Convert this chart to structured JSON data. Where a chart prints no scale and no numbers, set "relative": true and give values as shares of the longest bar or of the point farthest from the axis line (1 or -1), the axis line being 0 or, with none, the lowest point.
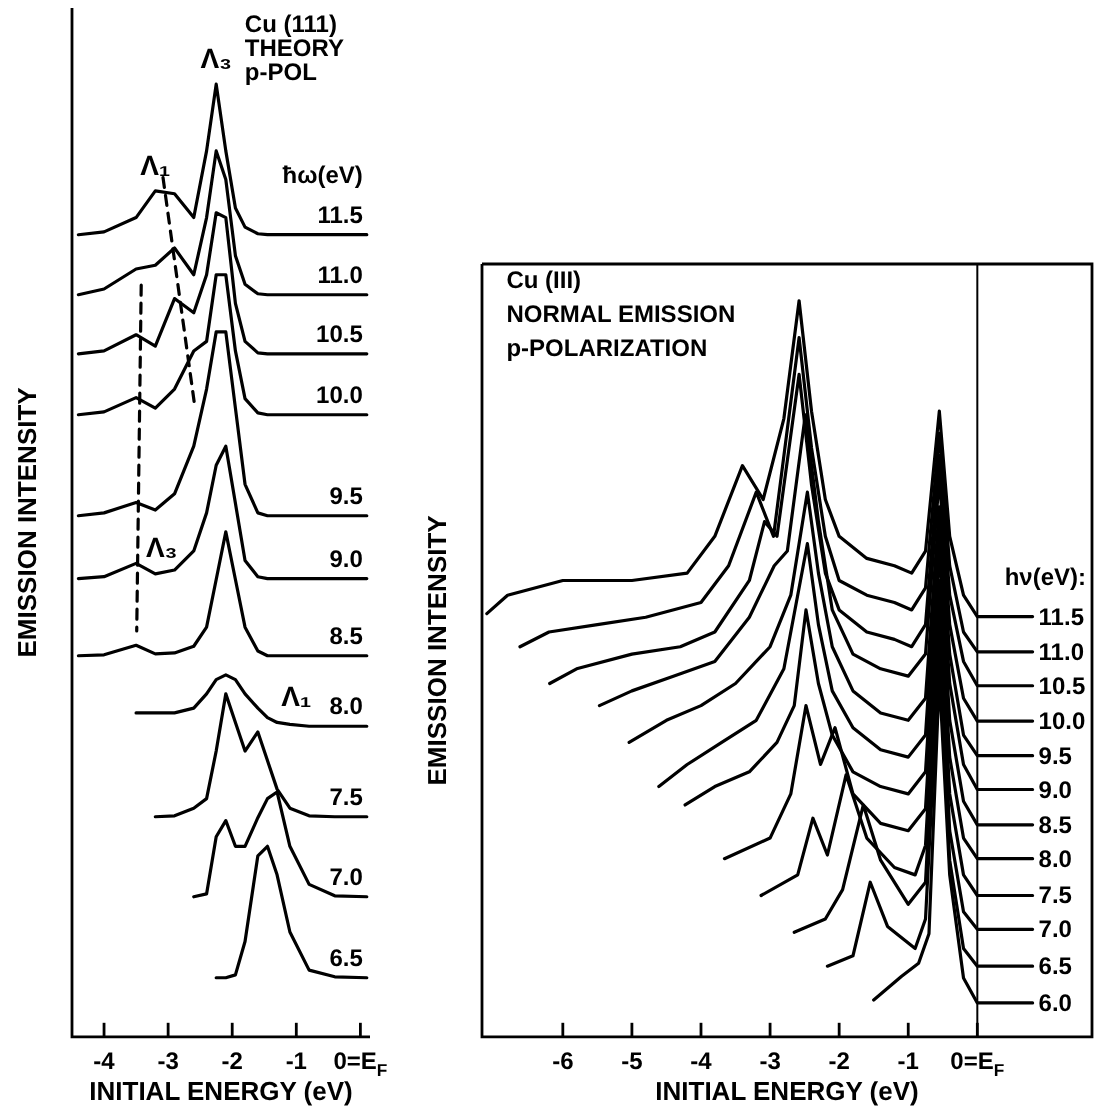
{
  "chart_data": [
    {
      "type": "line",
      "relative": true,
      "xlabel": "INITIAL ENERGY (eV)",
      "ylabel": "EMISSION INTENSITY",
      "legend_title": "ħω(eV)",
      "marker": "none",
      "xlim": [
        -4.5,
        0.15
      ],
      "xticks": [
        -4,
        -3,
        -2,
        -1,
        {
          "value": 0,
          "label": "0=E$_{F}$"
        }
      ],
      "x": [
        -4.4,
        -4.0,
        -3.5,
        -3.2,
        -2.9,
        -2.6,
        -2.4,
        -2.25,
        -2.1,
        -1.95,
        -1.8,
        -1.6,
        -1.45,
        -1.3,
        -1.1,
        -0.8,
        -0.4,
        0.1
      ],
      "series": [
        {
          "name": "11.5",
          "color": "#000000",
          "values": [
            0.842,
            0.845,
            0.86,
            0.888,
            0.885,
            0.86,
            0.93,
            1.0,
            0.93,
            0.87,
            0.85,
            0.843,
            0.842,
            0.842,
            0.842,
            0.842,
            0.842,
            0.842
          ]
        },
        {
          "name": "11.0",
          "color": "#000000",
          "values": [
            0.779,
            0.785,
            0.806,
            0.81,
            0.828,
            0.8,
            0.86,
            0.93,
            0.9,
            0.82,
            0.79,
            0.78,
            0.779,
            0.779,
            0.779,
            0.779,
            0.779,
            0.779
          ]
        },
        {
          "name": "10.5",
          "color": "#000000",
          "values": [
            0.717,
            0.72,
            0.737,
            0.725,
            0.775,
            0.76,
            0.8,
            0.865,
            0.86,
            0.77,
            0.73,
            0.718,
            0.717,
            0.717,
            0.717,
            0.717,
            0.717,
            0.717
          ]
        },
        {
          "name": "10.0",
          "color": "#000000",
          "values": [
            0.653,
            0.656,
            0.671,
            0.66,
            0.68,
            0.72,
            0.73,
            0.8,
            0.8,
            0.72,
            0.67,
            0.655,
            0.653,
            0.653,
            0.653,
            0.653,
            0.653,
            0.653
          ]
        },
        {
          "name": "9.5",
          "color": "#000000",
          "values": [
            0.547,
            0.55,
            0.561,
            0.553,
            0.57,
            0.62,
            0.68,
            0.74,
            0.74,
            0.66,
            0.58,
            0.55,
            0.547,
            0.547,
            0.547,
            0.547,
            0.547,
            0.547
          ]
        },
        {
          "name": "9.0",
          "color": "#000000",
          "values": [
            0.481,
            0.483,
            0.497,
            0.486,
            0.49,
            0.51,
            0.55,
            0.6,
            0.62,
            0.56,
            0.5,
            0.483,
            0.481,
            0.481,
            0.481,
            0.481,
            0.481,
            0.481
          ]
        },
        {
          "name": "8.5",
          "color": "#000000",
          "values": [
            0.4,
            0.401,
            0.411,
            0.402,
            0.403,
            0.41,
            0.43,
            0.48,
            0.53,
            0.48,
            0.43,
            0.405,
            0.4,
            0.4,
            0.4,
            0.4,
            0.4,
            0.4
          ]
        },
        {
          "name": "8.0",
          "color": "#000000",
          "values": [
            null,
            null,
            0.34,
            0.34,
            0.34,
            0.345,
            0.36,
            0.375,
            0.38,
            0.375,
            0.36,
            0.345,
            0.335,
            0.33,
            0.328,
            0.326,
            0.326,
            0.326
          ]
        },
        {
          "name": "7.5",
          "color": "#000000",
          "values": [
            null,
            null,
            null,
            0.231,
            0.232,
            0.24,
            0.25,
            0.3,
            0.36,
            0.33,
            0.3,
            0.32,
            0.29,
            0.26,
            0.24,
            0.232,
            0.231,
            0.231
          ]
        },
        {
          "name": "7.0",
          "color": "#000000",
          "values": [
            null,
            null,
            null,
            null,
            null,
            0.147,
            0.15,
            0.21,
            0.227,
            0.2,
            0.2,
            0.23,
            0.25,
            0.257,
            0.2,
            0.16,
            0.148,
            0.147
          ]
        },
        {
          "name": "6.5",
          "color": "#000000",
          "values": [
            null,
            null,
            null,
            null,
            null,
            null,
            null,
            0.062,
            0.062,
            0.065,
            0.1,
            0.19,
            0.2,
            0.17,
            0.11,
            0.07,
            0.063,
            0.062
          ]
        },
        {
          "type": "line",
          "line_style": "dashed",
          "color": "#000000",
          "x": [
            -3.08,
            -2.58
          ],
          "values": [
            0.902,
            0.66
          ]
        },
        {
          "type": "line",
          "line_style": "dashed",
          "color": "#000000",
          "x": [
            -3.42,
            -3.49
          ],
          "values": [
            0.789,
            0.426
          ]
        }
      ],
      "annotations": [
        {
          "text": "Λ₃",
          "x": -2.25,
          "y": 1.0
        },
        {
          "text": "Λ₁",
          "x": -3.2,
          "y": 0.888
        },
        {
          "text": "Λ₃",
          "x": -3.1,
          "y": 0.487
        },
        {
          "text": "Λ₁",
          "x": -1.0,
          "y": 0.33
        },
        "Cu (111)",
        "THEORY",
        "p-POL"
      ]
    },
    {
      "type": "line",
      "relative": true,
      "xlabel": "INITIAL ENERGY (eV)",
      "ylabel": "EMISSION INTENSITY",
      "legend_title": "hν(eV):",
      "marker": "none",
      "xlim": [
        -7.17,
        1.66
      ],
      "xticks": [
        -6,
        -5,
        -4,
        -3,
        -2,
        -1,
        {
          "value": 0,
          "label": "0=E$_{F}$"
        }
      ],
      "ref_lines": [
        {
          "axis": "x",
          "value": 0,
          "color": "#000000"
        }
      ],
      "series": [
        {
          "name": "11.5",
          "color": "#000000",
          "x": [
            -7.1,
            -6.8,
            -6.0,
            -5.0,
            -4.2,
            -3.8,
            -3.4,
            -3.1,
            -2.8,
            -2.58,
            -2.4,
            -2.2,
            -2.0,
            -1.6,
            -1.2,
            -0.95,
            -0.75,
            -0.55,
            -0.4,
            -0.2,
            0,
            0.8
          ],
          "values": [
            0.575,
            0.6,
            0.62,
            0.62,
            0.63,
            0.68,
            0.776,
            0.73,
            0.84,
            1.0,
            0.85,
            0.73,
            0.68,
            0.65,
            0.64,
            0.63,
            0.66,
            0.85,
            0.68,
            0.6,
            0.571,
            0.571
          ]
        },
        {
          "name": "11.0",
          "color": "#000000",
          "x": [
            -6.62,
            -6.2,
            -5.5,
            -4.8,
            -4.0,
            -3.6,
            -3.2,
            -2.95,
            -2.58,
            -2.4,
            -2.2,
            -2.0,
            -1.6,
            -1.2,
            -0.95,
            -0.75,
            -0.55,
            -0.4,
            -0.2,
            0,
            0.8
          ],
          "values": [
            0.53,
            0.55,
            0.56,
            0.57,
            0.59,
            0.64,
            0.74,
            0.68,
            0.95,
            0.8,
            0.68,
            0.62,
            0.6,
            0.59,
            0.58,
            0.61,
            0.82,
            0.64,
            0.55,
            0.523,
            0.523
          ]
        },
        {
          "name": "10.5",
          "color": "#000000",
          "x": [
            -6.19,
            -5.8,
            -5.0,
            -4.3,
            -3.8,
            -3.3,
            -3.08,
            -2.9,
            -2.58,
            -2.4,
            -2.2,
            -2.0,
            -1.6,
            -1.2,
            -0.95,
            -0.75,
            -0.55,
            -0.4,
            -0.2,
            0,
            0.8
          ],
          "values": [
            0.48,
            0.5,
            0.52,
            0.53,
            0.55,
            0.62,
            0.7,
            0.68,
            0.9,
            0.75,
            0.63,
            0.58,
            0.55,
            0.54,
            0.53,
            0.56,
            0.79,
            0.6,
            0.51,
            0.477,
            0.477
          ]
        },
        {
          "name": "10.0",
          "color": "#000000",
          "x": [
            -5.47,
            -5.0,
            -4.4,
            -3.8,
            -3.3,
            -2.94,
            -2.75,
            -2.49,
            -2.3,
            -2.1,
            -1.8,
            -1.4,
            -1.0,
            -0.75,
            -0.55,
            -0.4,
            -0.2,
            0,
            0.8
          ],
          "values": [
            0.45,
            0.47,
            0.49,
            0.51,
            0.57,
            0.64,
            0.66,
            0.845,
            0.7,
            0.58,
            0.52,
            0.5,
            0.49,
            0.52,
            0.76,
            0.56,
            0.46,
            0.429,
            0.429
          ]
        },
        {
          "name": "9.5",
          "color": "#000000",
          "x": [
            -5.04,
            -4.5,
            -4.0,
            -3.5,
            -3.0,
            -2.7,
            -2.46,
            -2.3,
            -2.1,
            -1.8,
            -1.4,
            -1.0,
            -0.75,
            -0.55,
            -0.4,
            -0.2,
            0,
            0.8
          ],
          "values": [
            0.4,
            0.43,
            0.45,
            0.48,
            0.53,
            0.6,
            0.74,
            0.63,
            0.53,
            0.47,
            0.44,
            0.43,
            0.46,
            0.72,
            0.52,
            0.41,
            0.382,
            0.382
          ]
        },
        {
          "name": "9.0",
          "color": "#000000",
          "x": [
            -4.61,
            -4.2,
            -3.7,
            -3.2,
            -2.8,
            -2.46,
            -2.3,
            -2.1,
            -1.8,
            -1.4,
            -1.0,
            -0.75,
            -0.55,
            -0.4,
            -0.2,
            0,
            0.8
          ],
          "values": [
            0.34,
            0.37,
            0.4,
            0.43,
            0.5,
            0.67,
            0.56,
            0.47,
            0.42,
            0.39,
            0.38,
            0.41,
            0.69,
            0.48,
            0.37,
            0.336,
            0.336
          ]
        },
        {
          "name": "8.5",
          "color": "#000000",
          "x": [
            -4.23,
            -3.8,
            -3.3,
            -2.9,
            -2.65,
            -2.48,
            -2.3,
            -2.1,
            -1.8,
            -1.4,
            -1.0,
            -0.75,
            -0.55,
            -0.4,
            -0.2,
            0,
            0.8
          ],
          "values": [
            0.315,
            0.34,
            0.36,
            0.4,
            0.45,
            0.58,
            0.48,
            0.41,
            0.36,
            0.34,
            0.33,
            0.36,
            0.66,
            0.43,
            0.32,
            0.288,
            0.288
          ]
        },
        {
          "name": "8.0",
          "color": "#000000",
          "x": [
            -3.66,
            -3.0,
            -2.7,
            -2.48,
            -2.27,
            -2.06,
            -1.8,
            -1.4,
            -1.0,
            -0.75,
            -0.55,
            -0.4,
            -0.2,
            0,
            0.8
          ],
          "values": [
            0.242,
            0.27,
            0.33,
            0.45,
            0.37,
            0.42,
            0.33,
            0.29,
            0.28,
            0.31,
            0.62,
            0.38,
            0.27,
            0.242,
            0.242
          ]
        },
        {
          "name": "7.5",
          "color": "#000000",
          "x": [
            -3.13,
            -2.6,
            -2.38,
            -2.17,
            -1.9,
            -1.6,
            -1.2,
            -0.9,
            -0.75,
            -0.55,
            -0.4,
            -0.2,
            0,
            0.8
          ],
          "values": [
            0.192,
            0.22,
            0.297,
            0.247,
            0.356,
            0.27,
            0.23,
            0.22,
            0.26,
            0.59,
            0.33,
            0.22,
            0.192,
            0.192
          ]
        },
        {
          "name": "7.0",
          "color": "#000000",
          "x": [
            -2.65,
            -2.2,
            -1.95,
            -1.65,
            -1.4,
            -1.0,
            -0.75,
            -0.55,
            -0.4,
            -0.2,
            0,
            0.8
          ],
          "values": [
            0.142,
            0.16,
            0.2,
            0.315,
            0.24,
            0.18,
            0.21,
            0.56,
            0.28,
            0.17,
            0.146,
            0.146
          ]
        },
        {
          "name": "6.5",
          "color": "#000000",
          "x": [
            -2.17,
            -1.8,
            -1.55,
            -1.3,
            -0.9,
            -0.75,
            -0.55,
            -0.4,
            -0.2,
            0,
            0.8
          ],
          "values": [
            0.096,
            0.11,
            0.21,
            0.15,
            0.12,
            0.16,
            0.52,
            0.24,
            0.12,
            0.096,
            0.096
          ]
        },
        {
          "name": "6.0",
          "color": "#000000",
          "x": [
            -1.5,
            -1.1,
            -0.85,
            -0.7,
            -0.55,
            -0.4,
            -0.2,
            0,
            0.8
          ],
          "values": [
            0.05,
            0.082,
            0.1,
            0.14,
            0.49,
            0.22,
            0.08,
            0.046,
            0.046
          ]
        }
      ],
      "annotations": [
        "Cu (III)",
        "NORMAL EMISSION",
        "p-POLARIZATION"
      ]
    }
  ]
}
